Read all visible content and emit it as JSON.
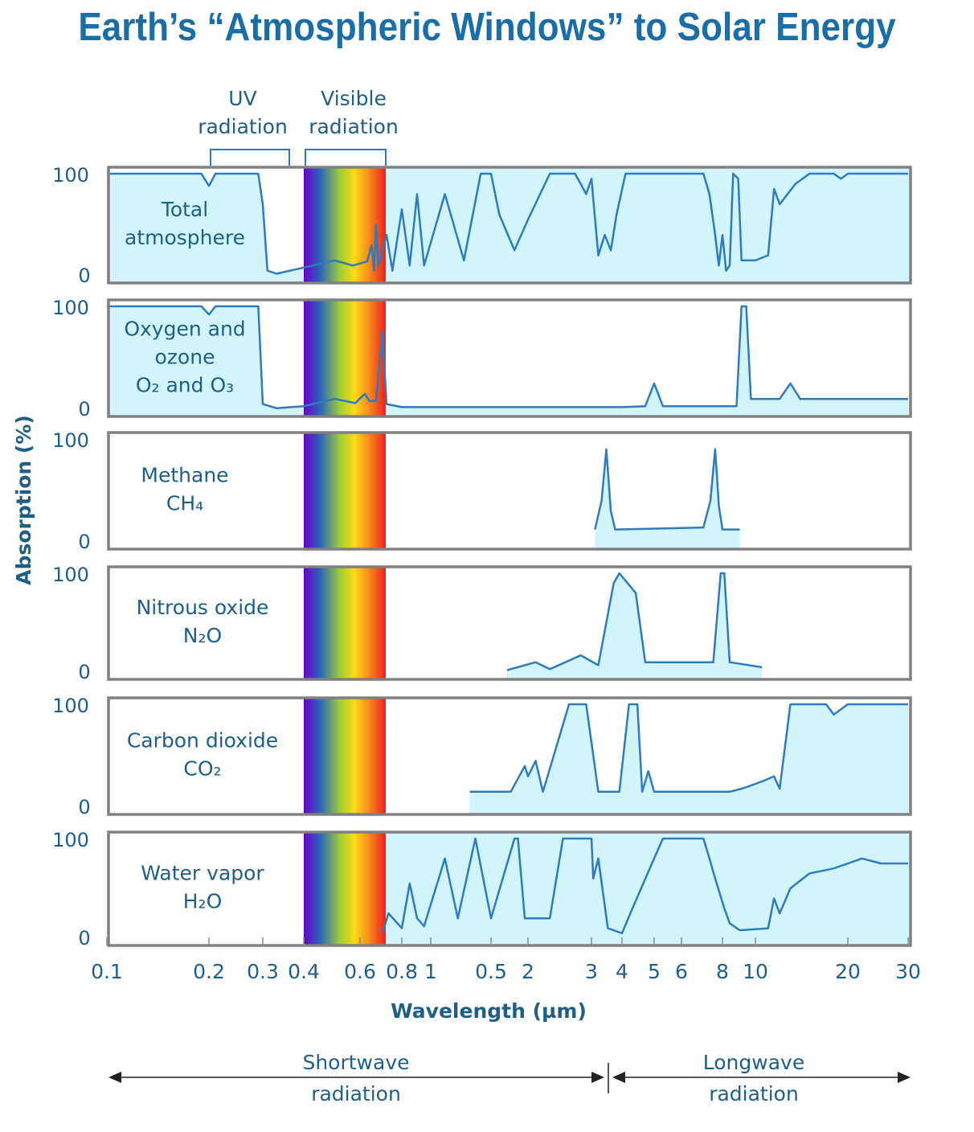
{
  "title": "Earth’s “Atmospheric Windows” to Solar Energy",
  "chart_data": {
    "type": "area",
    "title": "Earth’s “Atmospheric Windows” to Solar Energy",
    "xlabel": "Wavelength (µm)",
    "ylabel": "Absorption (%)",
    "ylim": [
      0,
      100
    ],
    "y_ticks": [
      "0",
      "100"
    ],
    "x_tick_labels": [
      "0.1",
      "0.2",
      "0.3",
      "0.4",
      "0.6",
      "0.8",
      "1",
      "0.5",
      "2",
      "3",
      "4",
      "5",
      "6",
      "8",
      "10",
      "20",
      "30"
    ],
    "band_labels": {
      "uv": "UV radiation",
      "visible": "Visible radiation"
    },
    "uv_range": [
      0.2,
      0.38
    ],
    "visible_range": [
      0.4,
      0.7
    ],
    "colors": {
      "curve": "#2f7bbd",
      "fill": "#d2f4fc",
      "frame": "#808080",
      "text": "#1f5f86"
    },
    "regions": [
      {
        "label": "Shortwave radiation",
        "range": [
          0.1,
          3.4
        ]
      },
      {
        "label": "Longwave radiation",
        "range": [
          3.4,
          30
        ]
      }
    ],
    "series": [
      {
        "name_lines": [
          "Total",
          "atmosphere"
        ],
        "shaded_from": 0.7,
        "points": [
          [
            0.1,
            100
          ],
          [
            0.19,
            100
          ],
          [
            0.2,
            88
          ],
          [
            0.21,
            100
          ],
          [
            0.29,
            100
          ],
          [
            0.3,
            70
          ],
          [
            0.31,
            5
          ],
          [
            0.33,
            2
          ],
          [
            0.4,
            8
          ],
          [
            0.5,
            15
          ],
          [
            0.57,
            10
          ],
          [
            0.63,
            14
          ],
          [
            0.65,
            30
          ],
          [
            0.66,
            5
          ],
          [
            0.67,
            50
          ],
          [
            0.68,
            10
          ],
          [
            0.72,
            40
          ],
          [
            0.75,
            5
          ],
          [
            0.8,
            65
          ],
          [
            0.85,
            10
          ],
          [
            0.9,
            80
          ],
          [
            0.95,
            10
          ],
          [
            1.1,
            80
          ],
          [
            1.25,
            15
          ],
          [
            1.4,
            100
          ],
          [
            1.5,
            100
          ],
          [
            1.6,
            60
          ],
          [
            1.8,
            25
          ],
          [
            2.0,
            55
          ],
          [
            2.3,
            100
          ],
          [
            2.7,
            100
          ],
          [
            2.8,
            90
          ],
          [
            2.9,
            80
          ],
          [
            3.0,
            95
          ],
          [
            3.2,
            20
          ],
          [
            3.4,
            40
          ],
          [
            3.6,
            25
          ],
          [
            3.8,
            60
          ],
          [
            4.1,
            100
          ],
          [
            5,
            100
          ],
          [
            7,
            100
          ],
          [
            7.3,
            80
          ],
          [
            7.6,
            40
          ],
          [
            7.8,
            10
          ],
          [
            8,
            40
          ],
          [
            8.2,
            5
          ],
          [
            8.4,
            10
          ],
          [
            8.6,
            100
          ],
          [
            8.9,
            95
          ],
          [
            9.1,
            15
          ],
          [
            10,
            15
          ],
          [
            11,
            20
          ],
          [
            11.5,
            85
          ],
          [
            12,
            70
          ],
          [
            13.5,
            90
          ],
          [
            15,
            100
          ],
          [
            18,
            100
          ],
          [
            19,
            95
          ],
          [
            20,
            100
          ],
          [
            30,
            100
          ]
        ]
      },
      {
        "name_lines": [
          "Oxygen and",
          "ozone",
          "O₂ and O₃"
        ],
        "points": [
          [
            0.1,
            100
          ],
          [
            0.19,
            100
          ],
          [
            0.2,
            92
          ],
          [
            0.21,
            100
          ],
          [
            0.29,
            100
          ],
          [
            0.3,
            5
          ],
          [
            0.33,
            1
          ],
          [
            0.4,
            3
          ],
          [
            0.5,
            10
          ],
          [
            0.58,
            6
          ],
          [
            0.62,
            15
          ],
          [
            0.64,
            8
          ],
          [
            0.67,
            8
          ],
          [
            0.7,
            75
          ],
          [
            0.72,
            5
          ],
          [
            0.8,
            2
          ],
          [
            4,
            2
          ],
          [
            4.7,
            3
          ],
          [
            5,
            25
          ],
          [
            5.3,
            3
          ],
          [
            8.8,
            3
          ],
          [
            9.1,
            100
          ],
          [
            9.4,
            100
          ],
          [
            9.7,
            10
          ],
          [
            12,
            10
          ],
          [
            13,
            25
          ],
          [
            14,
            10
          ],
          [
            30,
            10
          ]
        ]
      },
      {
        "name_lines": [
          "Methane",
          "CH₄"
        ],
        "points": [
          [
            3.1,
            12
          ],
          [
            3.3,
            40
          ],
          [
            3.45,
            90
          ],
          [
            3.6,
            30
          ],
          [
            3.75,
            12
          ],
          [
            7,
            14
          ],
          [
            7.35,
            40
          ],
          [
            7.6,
            90
          ],
          [
            7.8,
            35
          ],
          [
            8,
            12
          ],
          [
            9,
            12
          ]
        ]
      },
      {
        "name_lines": [
          "Nitrous oxide",
          "N₂O"
        ],
        "points": [
          [
            1.7,
            2
          ],
          [
            2.1,
            10
          ],
          [
            2.3,
            3
          ],
          [
            2.8,
            17
          ],
          [
            3.2,
            7
          ],
          [
            3.7,
            90
          ],
          [
            3.9,
            100
          ],
          [
            4.4,
            80
          ],
          [
            4.7,
            10
          ],
          [
            7.5,
            10
          ],
          [
            7.9,
            100
          ],
          [
            8.1,
            100
          ],
          [
            8.4,
            10
          ],
          [
            10.5,
            5
          ]
        ]
      },
      {
        "name_lines": [
          "Carbon dioxide",
          "CO₂"
        ],
        "points": [
          [
            1.3,
            15
          ],
          [
            1.75,
            15
          ],
          [
            1.95,
            40
          ],
          [
            2.0,
            30
          ],
          [
            2.1,
            45
          ],
          [
            2.2,
            15
          ],
          [
            2.6,
            100
          ],
          [
            2.9,
            100
          ],
          [
            3.2,
            15
          ],
          [
            3.9,
            15
          ],
          [
            4.2,
            100
          ],
          [
            4.45,
            100
          ],
          [
            4.6,
            15
          ],
          [
            4.8,
            35
          ],
          [
            5,
            15
          ],
          [
            8.4,
            15
          ],
          [
            9.1,
            18
          ],
          [
            9.5,
            20
          ],
          [
            10.5,
            25
          ],
          [
            11.5,
            30
          ],
          [
            12,
            18
          ],
          [
            13,
            100
          ],
          [
            17,
            100
          ],
          [
            18,
            90
          ],
          [
            20,
            100
          ],
          [
            30,
            100
          ]
        ]
      },
      {
        "name_lines": [
          "Water vapor",
          "H₂O"
        ],
        "shaded_from": 0.7,
        "points": [
          [
            0.7,
            5
          ],
          [
            0.73,
            25
          ],
          [
            0.8,
            10
          ],
          [
            0.85,
            55
          ],
          [
            0.9,
            20
          ],
          [
            0.95,
            12
          ],
          [
            1.1,
            80
          ],
          [
            1.2,
            20
          ],
          [
            1.35,
            100
          ],
          [
            1.5,
            20
          ],
          [
            1.8,
            100
          ],
          [
            1.85,
            100
          ],
          [
            1.95,
            20
          ],
          [
            2.3,
            20
          ],
          [
            2.5,
            100
          ],
          [
            3.0,
            100
          ],
          [
            3.05,
            60
          ],
          [
            3.2,
            80
          ],
          [
            3.5,
            10
          ],
          [
            4,
            5
          ],
          [
            4.3,
            30
          ],
          [
            5,
            80
          ],
          [
            5.3,
            100
          ],
          [
            7,
            100
          ],
          [
            7.3,
            80
          ],
          [
            7.6,
            60
          ],
          [
            8.1,
            30
          ],
          [
            8.4,
            15
          ],
          [
            9,
            8
          ],
          [
            11,
            10
          ],
          [
            11.5,
            40
          ],
          [
            12,
            25
          ],
          [
            13,
            50
          ],
          [
            15,
            65
          ],
          [
            18,
            70
          ],
          [
            20,
            75
          ],
          [
            22,
            80
          ],
          [
            25,
            75
          ],
          [
            30,
            75
          ]
        ]
      }
    ]
  }
}
